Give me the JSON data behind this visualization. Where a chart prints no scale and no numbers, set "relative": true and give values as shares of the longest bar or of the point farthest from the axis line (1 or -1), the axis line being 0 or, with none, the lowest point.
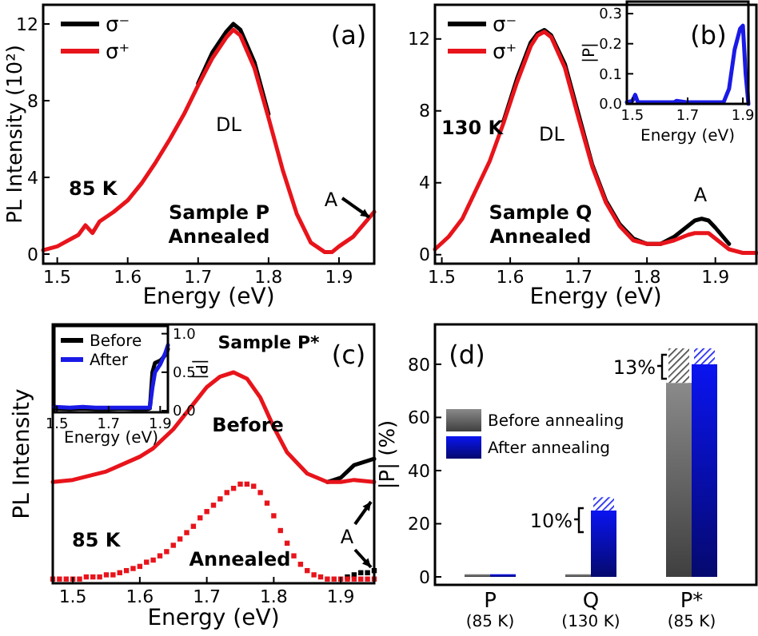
{
  "chart_data": [
    {
      "type": "line",
      "title": "(a)",
      "xlabel": "Energy (eV)",
      "ylabel": "PL Intensity (10²)",
      "xlim": [
        1.48,
        1.95
      ],
      "ylim": [
        -0.5,
        13
      ],
      "xticks": [
        1.5,
        1.6,
        1.7,
        1.8,
        1.9
      ],
      "yticks": [
        0,
        4,
        8,
        12
      ],
      "legend": "top left",
      "annotations": [
        "DL",
        "85 K",
        "Sample P",
        "Annealed",
        "A"
      ],
      "x": [
        1.48,
        1.5,
        1.52,
        1.53,
        1.54,
        1.55,
        1.56,
        1.58,
        1.6,
        1.62,
        1.64,
        1.66,
        1.68,
        1.7,
        1.72,
        1.74,
        1.75,
        1.76,
        1.78,
        1.8,
        1.82,
        1.84,
        1.86,
        1.88,
        1.89,
        1.9,
        1.92,
        1.95
      ],
      "series": [
        {
          "name": "σ⁻",
          "color": "#000000",
          "values": [
            null,
            null,
            null,
            null,
            null,
            null,
            null,
            null,
            null,
            null,
            null,
            null,
            null,
            8.9,
            10.5,
            11.6,
            12.0,
            11.7,
            10.0,
            7.3,
            null,
            null,
            null,
            null,
            null,
            null,
            null,
            null
          ]
        },
        {
          "name": "σ⁺",
          "color": "#e8141b",
          "values": [
            0.2,
            0.4,
            0.8,
            1.0,
            1.5,
            1.1,
            1.7,
            2.2,
            2.8,
            3.7,
            4.8,
            6.0,
            7.3,
            8.8,
            10.2,
            11.3,
            11.7,
            11.4,
            9.7,
            7.1,
            4.4,
            2.1,
            0.6,
            0.1,
            0.1,
            0.4,
            0.9,
            2.2
          ]
        }
      ]
    },
    {
      "type": "line",
      "title": "(b)",
      "xlabel": "Energy (eV)",
      "xlim": [
        1.49,
        1.96
      ],
      "ylim": [
        -0.5,
        13.9
      ],
      "xticks": [
        1.5,
        1.6,
        1.7,
        1.8,
        1.9
      ],
      "yticks": [
        0,
        4,
        8,
        12
      ],
      "legend": "top left",
      "annotations": [
        "DL",
        "130 K",
        "Sample Q",
        "Annealed",
        "A"
      ],
      "x": [
        1.49,
        1.51,
        1.53,
        1.55,
        1.57,
        1.59,
        1.61,
        1.63,
        1.64,
        1.65,
        1.66,
        1.68,
        1.7,
        1.72,
        1.74,
        1.76,
        1.78,
        1.8,
        1.82,
        1.84,
        1.86,
        1.87,
        1.88,
        1.89,
        1.9,
        1.92,
        1.94,
        1.96
      ],
      "series": [
        {
          "name": "σ⁻",
          "color": "#000000",
          "values": [
            null,
            null,
            null,
            null,
            null,
            7.4,
            9.8,
            11.8,
            12.3,
            12.5,
            12.2,
            10.6,
            7.8,
            5.0,
            3.0,
            1.7,
            0.9,
            0.6,
            0.6,
            1.0,
            1.6,
            1.9,
            2.0,
            1.9,
            1.5,
            0.6,
            null,
            null
          ]
        },
        {
          "name": "σ⁺",
          "color": "#e8141b",
          "values": [
            0.3,
            1.0,
            2.0,
            3.6,
            5.2,
            7.3,
            9.6,
            11.6,
            12.2,
            12.4,
            12.1,
            10.4,
            7.6,
            4.9,
            2.9,
            1.6,
            0.8,
            0.6,
            0.6,
            0.8,
            1.1,
            1.2,
            1.2,
            1.2,
            0.9,
            0.3,
            0.1,
            0.1
          ]
        }
      ]
    },
    {
      "type": "line",
      "xlabel": "Energy (eV)",
      "ylabel": "|P|",
      "xlim": [
        1.48,
        1.92
      ],
      "ylim": [
        0,
        0.34
      ],
      "xticks": [
        1.5,
        1.7,
        1.9
      ],
      "yticks": [
        {
          "value": 0,
          "label": "0.0"
        },
        {
          "value": 0.1,
          "label": "0.1"
        },
        {
          "value": 0.2,
          "label": "0.2"
        },
        {
          "value": 0.3,
          "label": "0.3"
        }
      ],
      "x": [
        1.48,
        1.5,
        1.51,
        1.52,
        1.55,
        1.6,
        1.65,
        1.66,
        1.7,
        1.75,
        1.8,
        1.83,
        1.85,
        1.87,
        1.89,
        1.9,
        1.91,
        1.92
      ],
      "series": [
        {
          "color": "#1a1ae6",
          "values": [
            0.005,
            0.01,
            0.03,
            0.005,
            0.005,
            0.005,
            0.005,
            0.01,
            0.005,
            0.005,
            0.005,
            0.005,
            0.05,
            0.18,
            0.25,
            0.26,
            0.1,
            0.0
          ]
        }
      ]
    },
    {
      "type": "line",
      "title": "(c)",
      "xlabel": "Energy (eV)",
      "ylabel": "PL Intensity",
      "relative": true,
      "xlim": [
        1.47,
        1.95
      ],
      "xticks": [
        1.5,
        1.6,
        1.7,
        1.8,
        1.9
      ],
      "annotations": [
        "Sample P*",
        "Before",
        "Annealed",
        "85 K",
        "A"
      ],
      "series": [
        {
          "color": "#000000",
          "x": [
            1.88,
            1.9,
            1.92,
            1.95
          ],
          "values": [
            0.48,
            0.5,
            0.56,
            0.59
          ]
        },
        {
          "color": "#e8141b",
          "x": [
            1.47,
            1.5,
            1.55,
            1.6,
            1.62,
            1.65,
            1.68,
            1.7,
            1.72,
            1.74,
            1.76,
            1.78,
            1.8,
            1.82,
            1.85,
            1.88,
            1.9,
            1.92,
            1.95
          ],
          "values": [
            0.48,
            0.49,
            0.53,
            0.6,
            0.64,
            0.73,
            0.85,
            0.93,
            0.98,
            1.0,
            0.97,
            0.88,
            0.74,
            0.62,
            0.52,
            0.48,
            0.48,
            0.49,
            0.48
          ]
        },
        {
          "type": "scatter",
          "marker": "square",
          "color": "#000000",
          "x": [
            1.91,
            1.92,
            1.93,
            1.94,
            1.95
          ],
          "values": [
            0.03,
            0.04,
            0.05,
            0.05,
            0.06
          ]
        },
        {
          "type": "scatter",
          "marker": "square",
          "color": "#e8141b",
          "x": [
            1.47,
            1.48,
            1.49,
            1.5,
            1.51,
            1.52,
            1.53,
            1.54,
            1.55,
            1.56,
            1.57,
            1.58,
            1.59,
            1.6,
            1.61,
            1.62,
            1.63,
            1.64,
            1.65,
            1.66,
            1.67,
            1.68,
            1.69,
            1.7,
            1.71,
            1.72,
            1.73,
            1.74,
            1.75,
            1.76,
            1.77,
            1.78,
            1.79,
            1.8,
            1.81,
            1.82,
            1.83,
            1.84,
            1.85,
            1.86,
            1.87,
            1.88,
            1.89,
            1.9,
            1.91,
            1.92,
            1.93,
            1.94,
            1.95
          ],
          "values": [
            0.02,
            0.02,
            0.02,
            0.02,
            0.02,
            0.03,
            0.03,
            0.03,
            0.04,
            0.04,
            0.05,
            0.06,
            0.07,
            0.08,
            0.1,
            0.11,
            0.13,
            0.15,
            0.18,
            0.21,
            0.24,
            0.27,
            0.31,
            0.34,
            0.37,
            0.4,
            0.43,
            0.45,
            0.47,
            0.47,
            0.46,
            0.43,
            0.38,
            0.32,
            0.25,
            0.19,
            0.13,
            0.09,
            0.06,
            0.04,
            0.03,
            0.02,
            0.02,
            0.02,
            0.02,
            0.02,
            0.02,
            0.02,
            0.02
          ]
        }
      ]
    },
    {
      "type": "line",
      "xlabel": "Energy (eV)",
      "y2label": "|P|",
      "xlim": [
        1.49,
        1.93
      ],
      "y2lim": [
        -0.02,
        1.1
      ],
      "xticks": [
        1.5,
        1.7,
        1.9
      ],
      "y2ticks": [
        {
          "value": 0,
          "label": "0.0"
        },
        {
          "value": 0.5,
          "label": "0.5"
        },
        {
          "value": 1,
          "label": "1.0"
        }
      ],
      "legend": "top left",
      "x": [
        1.49,
        1.55,
        1.6,
        1.65,
        1.7,
        1.75,
        1.8,
        1.85,
        1.86,
        1.87,
        1.88,
        1.9,
        1.92,
        1.93
      ],
      "series": [
        {
          "name": "Before",
          "color": "#000000",
          "axis": "y2",
          "values": [
            0.03,
            0.02,
            0.03,
            0.02,
            0.02,
            0.03,
            0.02,
            0.02,
            0.03,
            0.5,
            0.62,
            0.65,
            0.72,
            0.8
          ]
        },
        {
          "name": "After",
          "color": "#1a1ae6",
          "axis": "y2",
          "values": [
            0.05,
            0.04,
            0.05,
            0.04,
            0.04,
            0.04,
            0.04,
            0.04,
            0.04,
            0.3,
            0.5,
            0.6,
            0.75,
            0.85
          ]
        }
      ]
    },
    {
      "type": "bar",
      "title": "(d)",
      "ylabel": "|P| (%)",
      "categories": [
        "P\n(85 K)",
        "Q\n(130 K)",
        "P*\n(85 K)"
      ],
      "ylim": [
        -3,
        95
      ],
      "yticks": [
        0,
        20,
        40,
        60,
        80
      ],
      "legend": "left",
      "annotations": [
        "10%",
        "13%"
      ],
      "series": [
        {
          "name": "Before annealing",
          "color": "#8a8a8a",
          "values": [
            1,
            1,
            73
          ]
        },
        {
          "name": "After annealing",
          "color": "#0a14f0",
          "values": [
            1,
            25,
            80
          ]
        },
        {
          "color": "#404040",
          "values": [
            null,
            null,
            13
          ],
          "base": [
            null,
            null,
            73
          ]
        },
        {
          "color": "#0a14f0",
          "values": [
            null,
            5,
            6
          ],
          "base": [
            null,
            25,
            80
          ]
        }
      ]
    }
  ]
}
